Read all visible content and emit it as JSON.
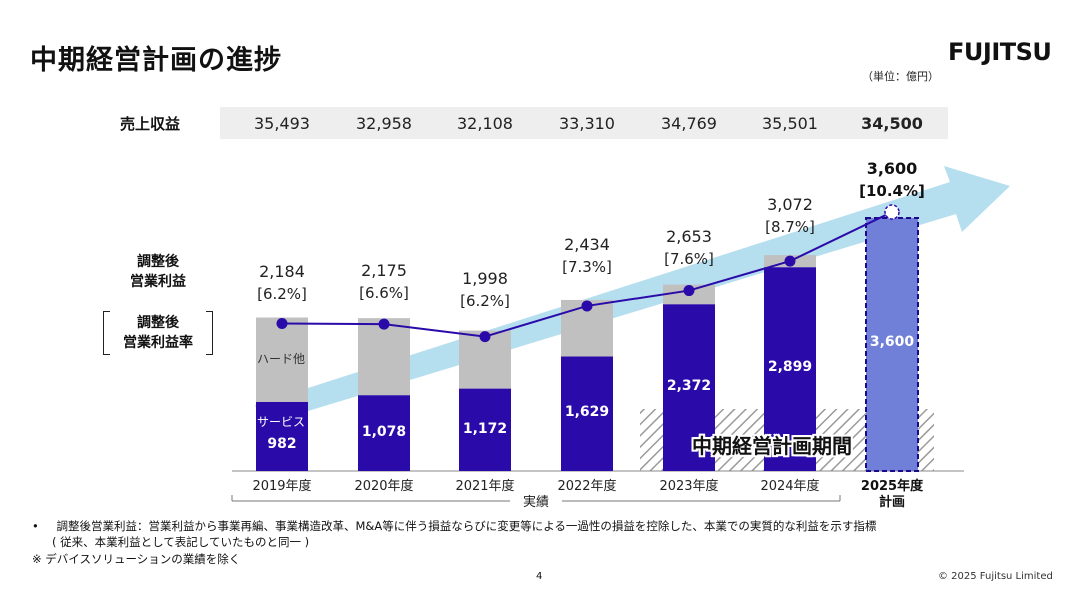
{
  "header": {
    "title": "中期経営計画の進捗",
    "logo": "FUJITSU",
    "unit": "（単位：億円）"
  },
  "revenue": {
    "label": "売上収益",
    "values": [
      "35,493",
      "32,958",
      "32,108",
      "33,310",
      "34,769",
      "35,501",
      "34,500"
    ]
  },
  "labels": {
    "op_profit": [
      "調整後",
      "営業利益"
    ],
    "op_margin": [
      "調整後",
      "営業利益率"
    ],
    "hardware": "ハード他",
    "services": "サービス",
    "period": "中期経営計画期間",
    "actual": "実績",
    "plan_year": "2025年度",
    "plan": "計画"
  },
  "chart_data": {
    "type": "bar",
    "categories": [
      "2019年度",
      "2020年度",
      "2021年度",
      "2022年度",
      "2023年度",
      "2024年度",
      "2025年度"
    ],
    "series": [
      {
        "name": "サービス",
        "values": [
          982,
          1078,
          1172,
          1629,
          2372,
          2899,
          3600
        ]
      },
      {
        "name": "ハード他",
        "values": [
          1202,
          1097,
          826,
          805,
          281,
          173,
          0
        ]
      }
    ],
    "totals": [
      "2,184",
      "2,175",
      "1,998",
      "2,434",
      "2,653",
      "3,072",
      "3,600"
    ],
    "total_values": [
      2184,
      2175,
      1998,
      2434,
      2653,
      3072,
      3600
    ],
    "margins": [
      "[6.2%]",
      "[6.6%]",
      "[6.2%]",
      "[7.3%]",
      "[7.6%]",
      "[8.7%]",
      "[10.4%]"
    ],
    "service_labels": [
      "982",
      "1,078",
      "1,172",
      "1,629",
      "2,372",
      "2,899",
      "3,600"
    ],
    "ylim": [
      0,
      4000
    ],
    "colors": {
      "service": "#2a0aa8",
      "hardware": "#c0c0c0",
      "plan": "#7080d8",
      "line": "#2a0aa8",
      "arrow": "#a8d8ec"
    }
  },
  "notes": {
    "bullet": "•",
    "line1": "調整後営業利益：営業利益から事業再編、事業構造改革、M&A等に伴う損益ならびに変更等による一過性の損益を控除した、本業での実質的な利益を示す指標",
    "line2": "( 従来、本業利益として表記していたものと同一 )",
    "line3": "※ デバイスソリューションの業績を除く"
  },
  "footer": {
    "page": "4",
    "copyright": "© 2025 Fujitsu Limited"
  }
}
